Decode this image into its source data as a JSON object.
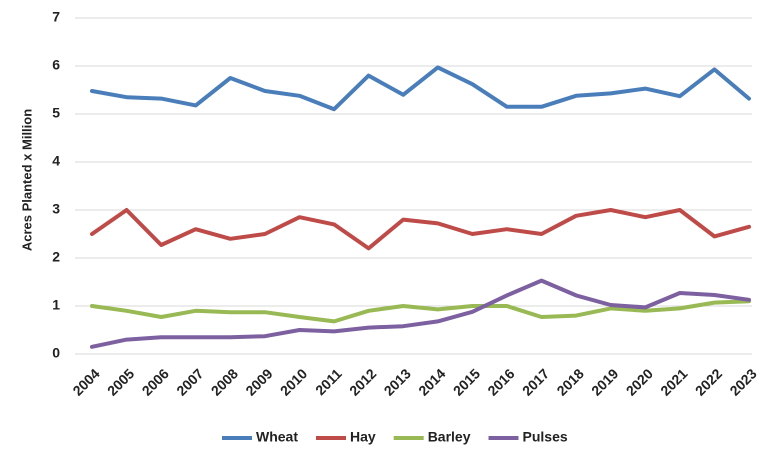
{
  "chart_data": {
    "type": "line",
    "y_label": "Acres Planted x Million",
    "categories": [
      "2004",
      "2005",
      "2006",
      "2007",
      "2008",
      "2009",
      "2010",
      "2011",
      "2012",
      "2013",
      "2014",
      "2015",
      "2016",
      "2017",
      "2018",
      "2019",
      "2020",
      "2021",
      "2022",
      "2023"
    ],
    "series": [
      {
        "name": "Wheat",
        "color": "#4a7ebb",
        "values": [
          5.48,
          5.35,
          5.32,
          5.18,
          5.75,
          5.48,
          5.38,
          5.1,
          5.8,
          5.4,
          5.97,
          5.62,
          5.15,
          5.15,
          5.38,
          5.43,
          5.53,
          5.37,
          5.93,
          5.32
        ]
      },
      {
        "name": "Hay",
        "color": "#be4b48",
        "values": [
          2.5,
          3.0,
          2.27,
          2.6,
          2.4,
          2.5,
          2.85,
          2.7,
          2.2,
          2.8,
          2.72,
          2.5,
          2.6,
          2.5,
          2.88,
          3.0,
          2.85,
          3.0,
          2.45,
          2.65
        ]
      },
      {
        "name": "Barley",
        "color": "#98b954",
        "values": [
          1.0,
          0.9,
          0.77,
          0.9,
          0.87,
          0.87,
          0.77,
          0.68,
          0.9,
          1.0,
          0.93,
          1.0,
          1.0,
          0.77,
          0.8,
          0.95,
          0.9,
          0.95,
          1.07,
          1.1
        ]
      },
      {
        "name": "Pulses",
        "color": "#7d60a0",
        "values": [
          0.15,
          0.3,
          0.35,
          0.35,
          0.35,
          0.37,
          0.5,
          0.47,
          0.55,
          0.58,
          0.68,
          0.88,
          1.22,
          1.53,
          1.22,
          1.02,
          0.97,
          1.27,
          1.23,
          1.13
        ]
      }
    ],
    "ylim": [
      0,
      7
    ],
    "yticks": [
      0,
      1,
      2,
      3,
      4,
      5,
      6,
      7
    ],
    "grid": true,
    "legend": "bottom"
  }
}
